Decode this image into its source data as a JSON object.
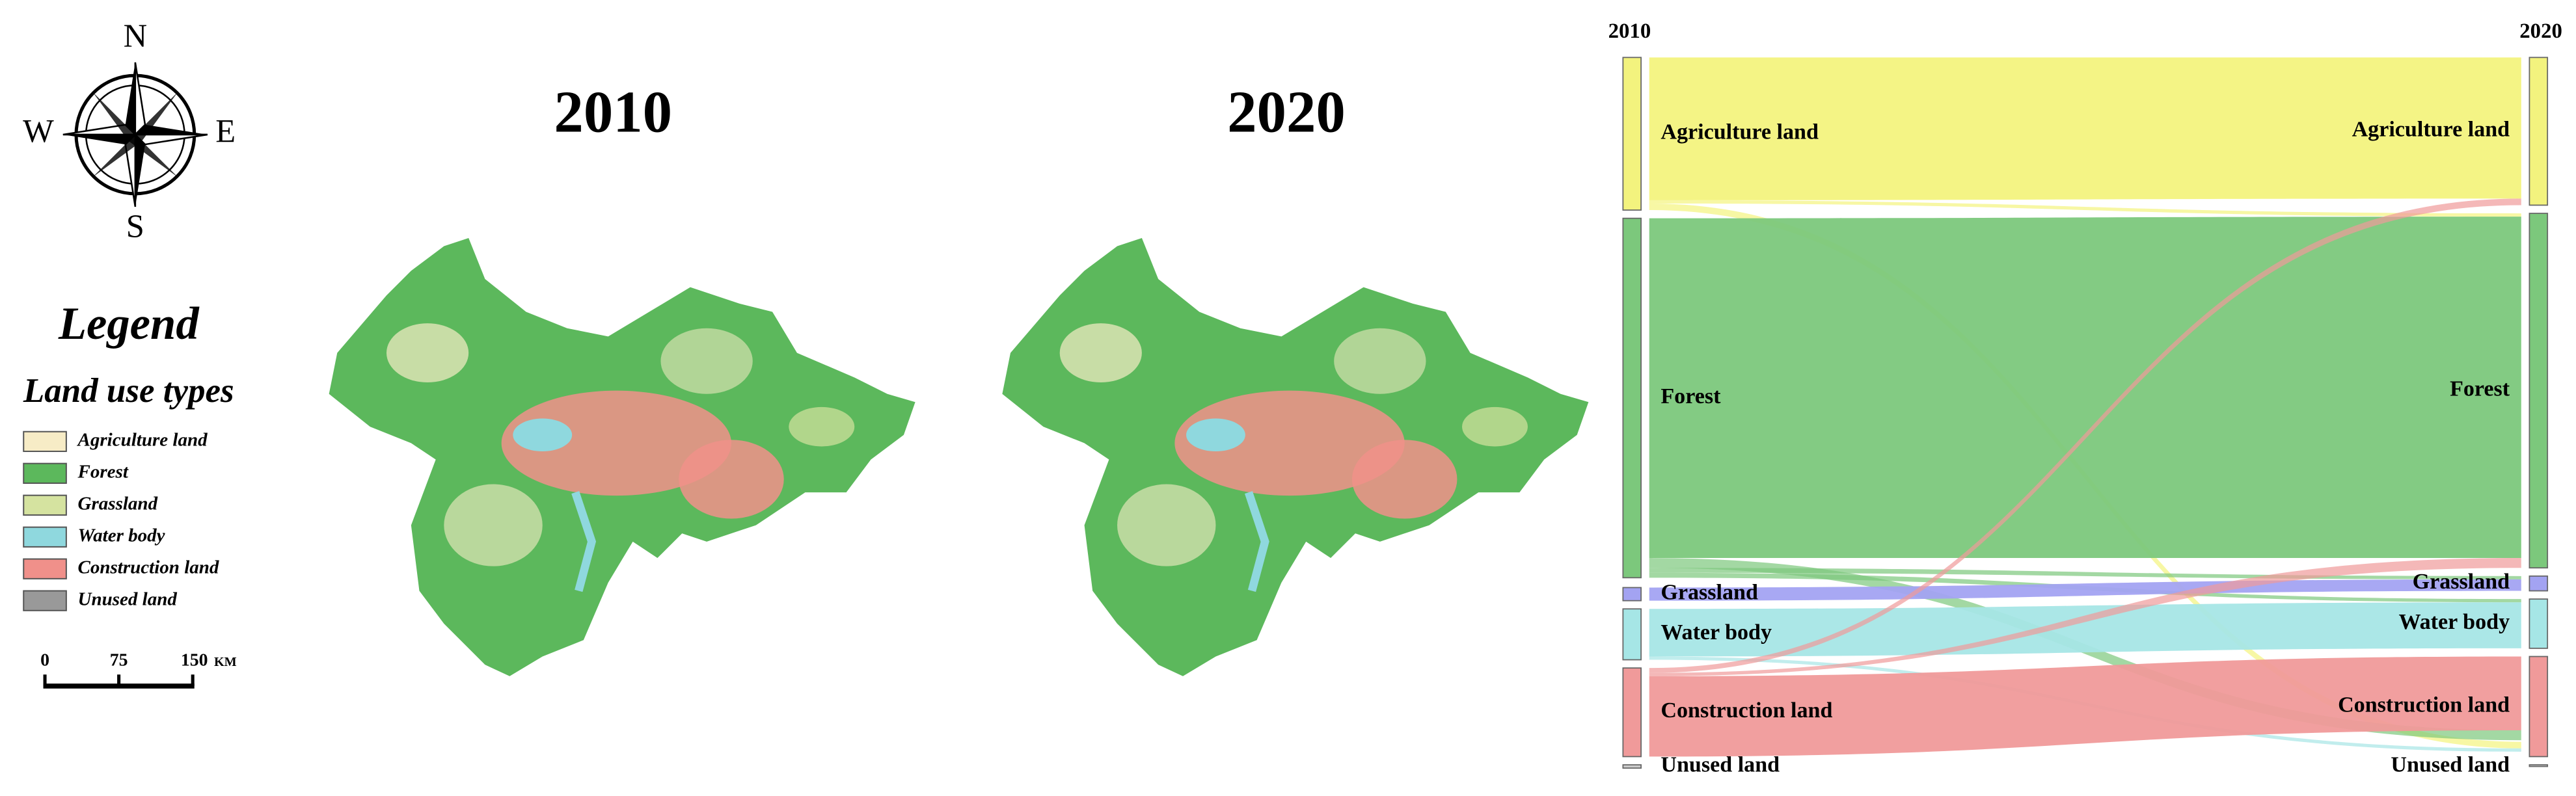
{
  "compass": {
    "n": "N",
    "e": "E",
    "s": "S",
    "w": "W"
  },
  "legend": {
    "title": "Legend",
    "subtitle": "Land use types",
    "items": [
      {
        "label": "Agriculture land",
        "color": "#f7ecc6"
      },
      {
        "label": "Forest",
        "color": "#5cb85c"
      },
      {
        "label": "Grassland",
        "color": "#d5e3a0"
      },
      {
        "label": "Water body",
        "color": "#8fd8de"
      },
      {
        "label": "Construction land",
        "color": "#f0908a"
      },
      {
        "label": "Unused land",
        "color": "#999999"
      }
    ]
  },
  "scale_bar": {
    "labels": [
      "0",
      "75",
      "150"
    ],
    "unit": "KM"
  },
  "maps": [
    {
      "title": "2010"
    },
    {
      "title": "2020"
    }
  ],
  "sankey": {
    "left_header": "2010",
    "right_header": "2020",
    "left_nodes": [
      "Agriculture land",
      "Forest",
      "Grassland",
      "Water body",
      "Construction land",
      "Unused land"
    ],
    "right_nodes": [
      "Agriculture land",
      "Forest",
      "Grassland",
      "Water body",
      "Construction land",
      "Unused land"
    ]
  }
}
